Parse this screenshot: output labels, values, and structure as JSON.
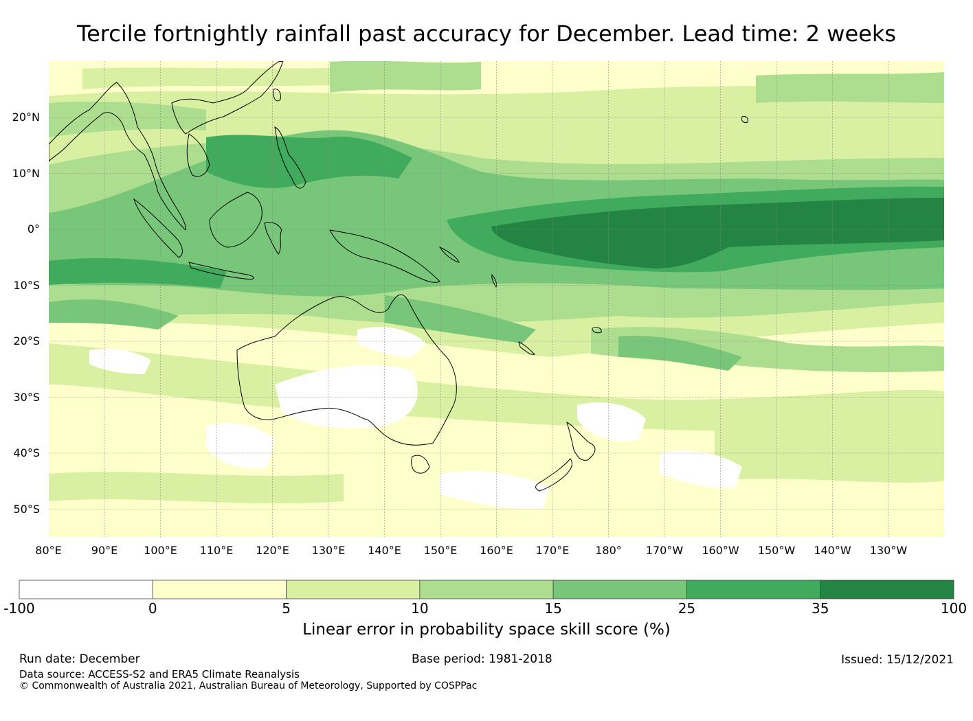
{
  "title": "Tercile fortnightly rainfall past accuracy for December. Lead time: 2 weeks",
  "map": {
    "lat_ticks": [
      "20°N",
      "10°N",
      "0°",
      "10°S",
      "20°S",
      "30°S",
      "40°S",
      "50°S"
    ],
    "lon_ticks": [
      "80°E",
      "90°E",
      "100°E",
      "110°E",
      "120°E",
      "130°E",
      "140°E",
      "150°E",
      "160°E",
      "170°E",
      "180°",
      "170°W",
      "160°W",
      "150°W",
      "140°W",
      "130°W"
    ],
    "lon_range": [
      80,
      240
    ],
    "lat_range": [
      -55,
      30
    ]
  },
  "colorbar": {
    "title": "Linear error in probability space skill score (%)",
    "bounds": [
      "-100",
      "0",
      "5",
      "10",
      "15",
      "25",
      "35",
      "100"
    ],
    "colors": [
      "#ffffff",
      "#ffffcc",
      "#d9f0a3",
      "#addd8e",
      "#78c679",
      "#41ab5d",
      "#238443"
    ]
  },
  "footer": {
    "run_date": "Run date: December",
    "base_period": "Base period: 1981-2018",
    "issued": "Issued: 15/12/2021",
    "data_source": "Data source: ACCESS-S2 and ERA5 Climate Reanalysis",
    "copyright": "© Commonwealth of Australia 2021, Australian Bureau of Meteorology, Supported by COSPPac"
  }
}
